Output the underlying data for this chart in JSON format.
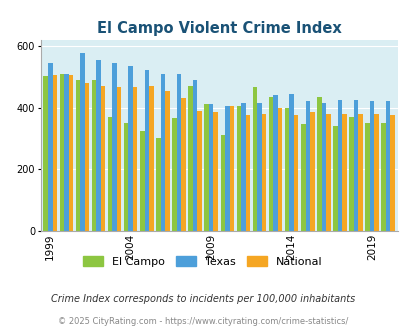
{
  "title": "El Campo Violent Crime Index",
  "years": [
    1999,
    2000,
    2001,
    2002,
    2003,
    2004,
    2005,
    2006,
    2007,
    2008,
    2009,
    2010,
    2011,
    2012,
    2013,
    2014,
    2015,
    2016,
    2017,
    2018,
    2019,
    2020
  ],
  "el_campo": [
    502,
    510,
    490,
    490,
    370,
    350,
    325,
    300,
    365,
    470,
    410,
    310,
    405,
    465,
    435,
    400,
    345,
    435,
    340,
    370,
    350,
    350
  ],
  "texas": [
    545,
    510,
    575,
    555,
    545,
    535,
    520,
    510,
    510,
    490,
    410,
    405,
    415,
    415,
    440,
    445,
    420,
    415,
    425,
    425,
    420,
    420
  ],
  "national": [
    505,
    505,
    480,
    470,
    465,
    465,
    470,
    455,
    430,
    390,
    385,
    405,
    375,
    380,
    400,
    375,
    385,
    380,
    380,
    380,
    380,
    375
  ],
  "color_elcampo": "#8dc641",
  "color_texas": "#4d9fda",
  "color_national": "#f5a623",
  "bg_color": "#daeef3",
  "ylim": [
    0,
    620
  ],
  "yticks": [
    0,
    200,
    400,
    600
  ],
  "xtick_years": [
    1999,
    2004,
    2009,
    2014,
    2019
  ],
  "footnote1": "Crime Index corresponds to incidents per 100,000 inhabitants",
  "footnote2": "© 2025 CityRating.com - https://www.cityrating.com/crime-statistics/",
  "title_color": "#1a5276",
  "footnote1_color": "#333333",
  "footnote2_color": "#888888"
}
